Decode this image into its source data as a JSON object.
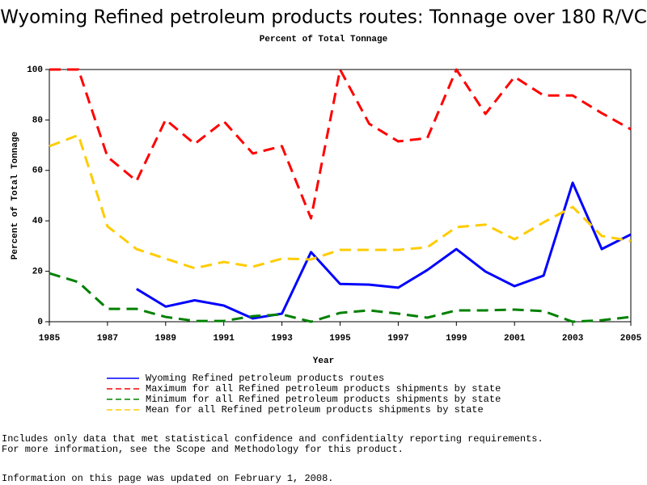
{
  "chart_data": {
    "type": "line",
    "title": "Wyoming Refined petroleum products routes: Tonnage over 180 R/VC",
    "subtitle": "Percent of Total Tonnage",
    "x_label": "Year",
    "y_label": "Percent of Total Tonnage",
    "x": [
      1985,
      1986,
      1987,
      1988,
      1989,
      1990,
      1991,
      1992,
      1993,
      1994,
      1995,
      1996,
      1997,
      1998,
      1999,
      2000,
      2001,
      2002,
      2003,
      2004,
      2005
    ],
    "series": [
      {
        "name": "Wyoming Refined petroleum products routes",
        "color": "#0000ff",
        "dashed": false,
        "values": [
          null,
          null,
          null,
          13,
          6,
          8.5,
          6.4,
          1.3,
          3.2,
          27.6,
          15,
          14.7,
          13.5,
          20.5,
          28.8,
          19.9,
          14.1,
          18.3,
          55.1,
          28.8,
          34.6
        ]
      },
      {
        "name": "Maximum for all Refined petroleum products shipments by state",
        "color": "#ff0000",
        "dashed": true,
        "values": [
          100,
          100,
          65.4,
          55.8,
          80.1,
          70.5,
          79.5,
          66.7,
          69.6,
          41,
          100,
          78.5,
          71.5,
          72.8,
          100,
          82.4,
          97.1,
          89.7,
          89.7,
          82.7,
          76.3
        ]
      },
      {
        "name": "Minimum for all Refined petroleum products shipments by state",
        "color": "#008000",
        "dashed": true,
        "values": [
          19.2,
          15.7,
          5.1,
          5.1,
          1.9,
          0.3,
          0.3,
          2.2,
          2.9,
          0,
          3.5,
          4.5,
          3.2,
          1.6,
          4.5,
          4.5,
          4.8,
          4.2,
          0,
          0.6,
          1.9
        ]
      },
      {
        "name": "Mean for all Refined petroleum products shipments by state",
        "color": "#ffcc00",
        "dashed": true,
        "values": [
          69.6,
          74,
          37.8,
          28.8,
          25,
          21.2,
          23.7,
          21.8,
          25,
          24.7,
          28.5,
          28.5,
          28.5,
          29.5,
          37.5,
          38.5,
          32.7,
          39.4,
          45.5,
          34,
          32
        ]
      }
    ],
    "xlim": [
      1985,
      2005
    ],
    "xticks": [
      1985,
      1987,
      1989,
      1991,
      1993,
      1995,
      1997,
      1999,
      2001,
      2003,
      2005
    ],
    "ylim": [
      0,
      100
    ],
    "yticks": [
      0,
      20,
      40,
      60,
      80,
      100
    ],
    "grid": false,
    "notes": [
      "Includes only data that met statistical confidence and confidentialty reporting requirements.",
      "For more information, see the Scope and Methodology for this product.",
      "Information on this page was updated on February 1, 2008."
    ]
  }
}
